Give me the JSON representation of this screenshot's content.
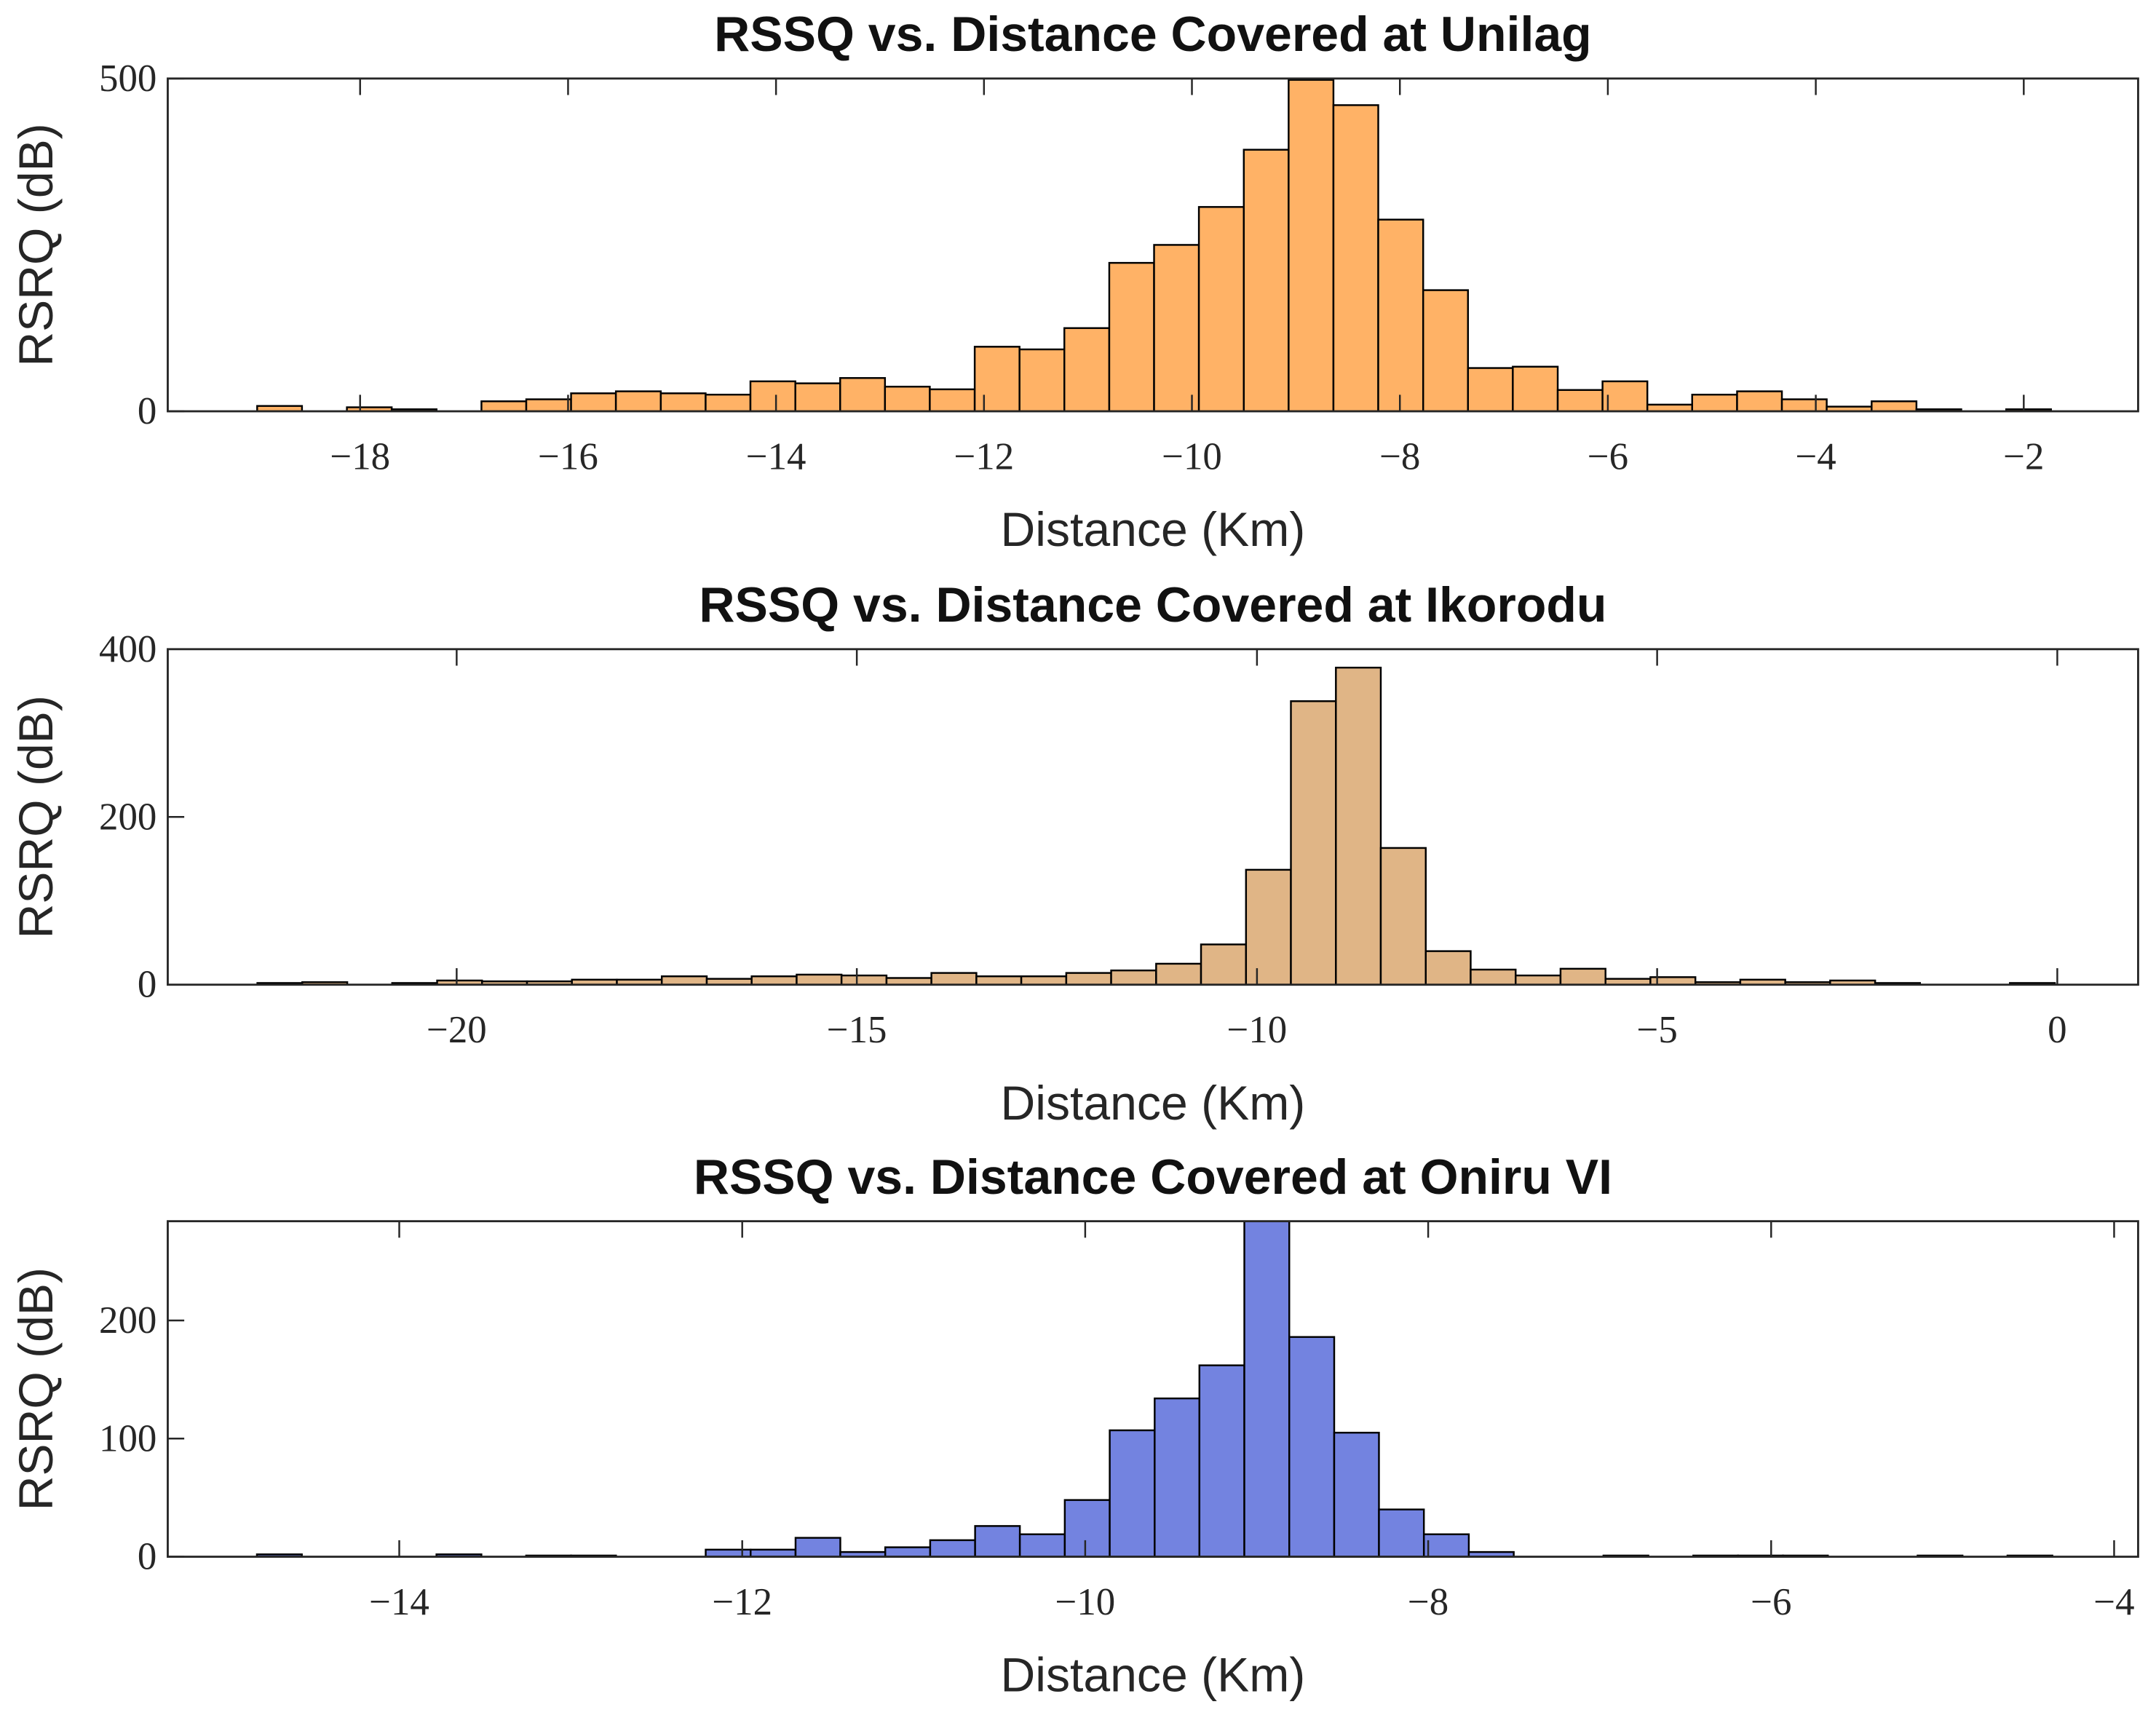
{
  "chart_data": [
    {
      "type": "histogram",
      "title": "RSSQ vs. Distance Covered at Unilag",
      "xlabel": "Distance (Km)",
      "ylabel": "RSRQ (dB)",
      "color": "#ffb266",
      "bins": [
        -18.99,
        -18.559,
        -18.127,
        -17.696,
        -17.265,
        -16.833,
        -16.402,
        -15.971,
        -15.54,
        -15.108,
        -14.677,
        -14.246,
        -13.814,
        -13.383,
        -12.952,
        -12.521,
        -12.089,
        -11.658,
        -11.227,
        -10.795,
        -10.364,
        -9.933,
        -9.501,
        -9.07,
        -8.639,
        -8.208,
        -7.776,
        -7.345,
        -6.914,
        -6.482,
        -6.051,
        -5.62,
        -5.189,
        -4.757,
        -4.326,
        -3.895,
        -3.463,
        -3.032,
        -2.601,
        -2.169,
        -1.738
      ],
      "values": [
        8,
        0,
        6,
        3,
        0,
        15,
        18,
        27,
        30,
        27,
        25,
        45,
        42,
        50,
        37,
        33,
        97,
        93,
        125,
        223,
        250,
        307,
        393,
        498,
        460,
        288,
        182,
        65,
        67,
        32,
        45,
        10,
        25,
        30,
        18,
        7,
        15,
        3,
        0,
        3
      ],
      "xlim": [
        -19.85,
        -0.9
      ],
      "ylim": [
        0,
        500
      ],
      "xticks": [
        {
          "value": -18,
          "label": "−18"
        },
        {
          "value": -16,
          "label": "−16"
        },
        {
          "value": -14,
          "label": "−14"
        },
        {
          "value": -12,
          "label": "−12"
        },
        {
          "value": -10,
          "label": "−10"
        },
        {
          "value": -8,
          "label": "−8"
        },
        {
          "value": -6,
          "label": "−6"
        },
        {
          "value": -4,
          "label": "−4"
        },
        {
          "value": -2,
          "label": "−2"
        }
      ],
      "yticks": [
        0,
        500
      ]
    },
    {
      "type": "histogram",
      "title": "RSSQ vs. Distance Covered at Ikorodu",
      "xlabel": "Distance (Km)",
      "ylabel": "RSRQ (dB)",
      "color": "#e0b586",
      "bins": [
        -22.49,
        -21.929,
        -21.367,
        -20.806,
        -20.244,
        -19.683,
        -19.121,
        -18.56,
        -17.998,
        -17.437,
        -16.875,
        -16.314,
        -15.752,
        -15.191,
        -14.629,
        -14.068,
        -13.506,
        -12.945,
        -12.383,
        -11.822,
        -11.26,
        -10.699,
        -10.137,
        -9.576,
        -9.014,
        -8.453,
        -7.891,
        -7.33,
        -6.768,
        -6.207,
        -5.645,
        -5.084,
        -4.522,
        -3.961,
        -3.399,
        -2.838,
        -2.276,
        -1.715,
        -1.153,
        -0.592,
        -0.03
      ],
      "values": [
        2,
        3,
        0,
        2,
        5,
        4,
        4,
        6,
        6,
        10,
        7,
        10,
        12,
        11,
        8,
        14,
        10,
        10,
        14,
        17,
        25,
        48,
        137,
        338,
        378,
        163,
        40,
        18,
        11,
        19,
        7,
        9,
        3,
        6,
        3,
        5,
        2,
        0,
        0,
        2
      ],
      "xlim": [
        -23.61,
        1.01
      ],
      "ylim": [
        0,
        400
      ],
      "xticks": [
        {
          "value": -20,
          "label": "−20"
        },
        {
          "value": -15,
          "label": "−15"
        },
        {
          "value": -10,
          "label": "−10"
        },
        {
          "value": -5,
          "label": "−5"
        },
        0
      ],
      "yticks": [
        0,
        200,
        400
      ]
    },
    {
      "type": "histogram",
      "title": "RSSQ vs. Distance Covered at Oniru VI",
      "xlabel": "Distance (Km)",
      "ylabel": "RSRQ (dB)",
      "color": "#7383e0",
      "bins": [
        -14.83,
        -14.568,
        -14.307,
        -14.045,
        -13.783,
        -13.521,
        -13.26,
        -12.998,
        -12.736,
        -12.474,
        -12.213,
        -11.951,
        -11.689,
        -11.428,
        -11.166,
        -10.904,
        -10.642,
        -10.381,
        -10.119,
        -9.857,
        -9.595,
        -9.334,
        -9.072,
        -8.81,
        -8.548,
        -8.287,
        -8.025,
        -7.763,
        -7.501,
        -7.24,
        -6.978,
        -6.716,
        -6.454,
        -6.193,
        -5.931,
        -5.669,
        -5.407,
        -5.146,
        -4.884,
        -4.622,
        -4.36
      ],
      "values": [
        2,
        0,
        0,
        0,
        2,
        0,
        1,
        1,
        0,
        0,
        6,
        6,
        16,
        4,
        8,
        14,
        26,
        19,
        48,
        107,
        134,
        162,
        290,
        186,
        105,
        40,
        19,
        4,
        0,
        0,
        1,
        0,
        1,
        1,
        1,
        0,
        0,
        1,
        0,
        1
      ],
      "xlim": [
        -15.35,
        -3.86
      ],
      "ylim": [
        0,
        284
      ],
      "xticks": [
        {
          "value": -14,
          "label": "−14"
        },
        {
          "value": -12,
          "label": "−12"
        },
        {
          "value": -10,
          "label": "−10"
        },
        {
          "value": -8,
          "label": "−8"
        },
        {
          "value": -6,
          "label": "−6"
        },
        {
          "value": -4,
          "label": "−4"
        }
      ],
      "yticks": [
        0,
        100,
        200
      ]
    }
  ]
}
